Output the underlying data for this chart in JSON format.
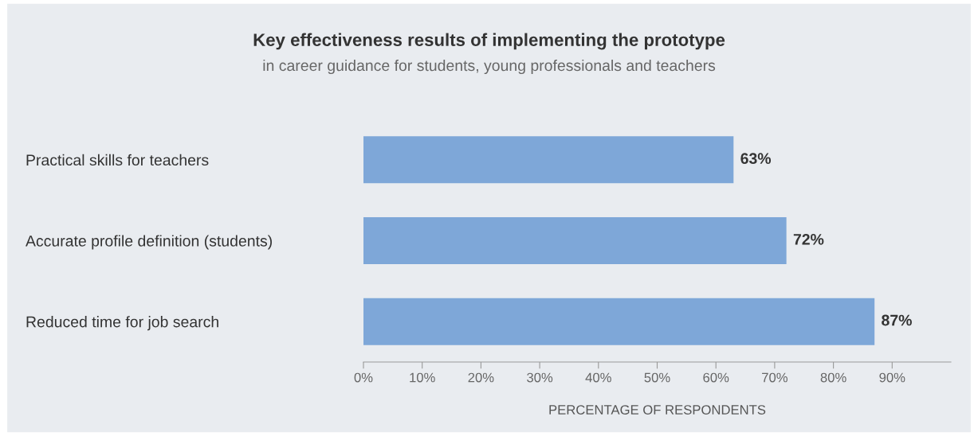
{
  "chart_data": {
    "type": "bar",
    "orientation": "horizontal",
    "title": "Key effectiveness results of implementing the prototype",
    "subtitle": "in career guidance for students, young professionals and teachers",
    "xlabel": "PERCENTAGE OF RESPONDENTS",
    "categories": [
      "Practical skills for teachers",
      "Accurate profile definition (students)",
      "Reduced time for job search"
    ],
    "values": [
      63,
      72,
      87
    ],
    "color": "#7ea7d8",
    "value_labels": [
      "63%",
      "72%",
      "87%"
    ],
    "xlim": [
      0,
      100
    ],
    "xticks": [
      {
        "value": 0,
        "label": "0%"
      },
      {
        "value": 10,
        "label": "10%"
      },
      {
        "value": 20,
        "label": "20%"
      },
      {
        "value": 30,
        "label": "30%"
      },
      {
        "value": 40,
        "label": "40%"
      },
      {
        "value": 50,
        "label": "50%"
      },
      {
        "value": 60,
        "label": "60%"
      },
      {
        "value": 70,
        "label": "70%"
      },
      {
        "value": 80,
        "label": "80%"
      },
      {
        "value": 90,
        "label": "90%"
      }
    ],
    "grid": false,
    "legend": false
  }
}
